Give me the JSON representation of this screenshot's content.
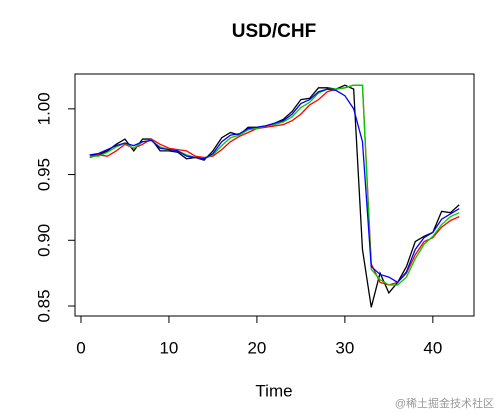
{
  "chart_data": {
    "type": "line",
    "title": "USD/CHF",
    "x_label": "Time",
    "x": [
      1,
      2,
      3,
      4,
      5,
      6,
      7,
      8,
      9,
      10,
      11,
      12,
      13,
      14,
      15,
      16,
      17,
      18,
      19,
      20,
      21,
      22,
      23,
      24,
      25,
      26,
      27,
      28,
      29,
      30,
      31,
      32,
      33,
      34,
      35,
      36,
      37,
      38,
      39,
      40,
      41,
      42,
      43
    ],
    "series": [
      {
        "color": "#000000",
        "values": [
          0.965,
          0.965,
          0.968,
          0.973,
          0.977,
          0.968,
          0.977,
          0.977,
          0.968,
          0.968,
          0.967,
          0.962,
          0.963,
          0.961,
          0.968,
          0.978,
          0.982,
          0.98,
          0.986,
          0.986,
          0.987,
          0.989,
          0.992,
          0.998,
          1.007,
          1.008,
          1.016,
          1.016,
          1.015,
          1.018,
          1.015,
          0.893,
          0.849,
          0.875,
          0.86,
          0.868,
          0.88,
          0.899,
          0.903,
          0.906,
          0.922,
          0.921,
          0.927
        ]
      },
      {
        "color": "#ff0000",
        "values": [
          0.963,
          0.965,
          0.964,
          0.968,
          0.973,
          0.97,
          0.973,
          0.977,
          0.973,
          0.97,
          0.969,
          0.968,
          0.964,
          0.963,
          0.964,
          0.969,
          0.975,
          0.979,
          0.982,
          0.985,
          0.986,
          0.987,
          0.988,
          0.991,
          0.996,
          1.003,
          1.007,
          1.013,
          1.015,
          1.016,
          1.018,
          1.018,
          0.882,
          0.868,
          0.866,
          0.868,
          0.875,
          0.889,
          0.899,
          0.902,
          0.91,
          0.915,
          0.918
        ]
      },
      {
        "color": "#00cd00",
        "values": [
          0.964,
          0.964,
          0.967,
          0.971,
          0.974,
          0.97,
          0.975,
          0.976,
          0.971,
          0.969,
          0.968,
          0.965,
          0.963,
          0.962,
          0.965,
          0.972,
          0.978,
          0.98,
          0.984,
          0.985,
          0.987,
          0.988,
          0.99,
          0.994,
          1.001,
          1.005,
          1.012,
          1.015,
          1.015,
          1.016,
          1.018,
          1.018,
          0.878,
          0.87,
          0.866,
          0.866,
          0.872,
          0.886,
          0.897,
          0.903,
          0.912,
          0.918,
          0.921
        ]
      },
      {
        "color": "#0000ff",
        "values": [
          0.965,
          0.966,
          0.969,
          0.972,
          0.974,
          0.972,
          0.975,
          0.976,
          0.97,
          0.969,
          0.968,
          0.964,
          0.963,
          0.962,
          0.966,
          0.975,
          0.98,
          0.981,
          0.985,
          0.986,
          0.987,
          0.989,
          0.991,
          0.996,
          1.004,
          1.007,
          1.013,
          1.015,
          1.014,
          1.01,
          1.0,
          0.975,
          0.88,
          0.874,
          0.872,
          0.868,
          0.876,
          0.893,
          0.902,
          0.906,
          0.916,
          0.92,
          0.924
        ]
      }
    ],
    "xlim": [
      -0.68,
      44.68
    ],
    "ylim": [
      0.8424,
      1.0265
    ],
    "xticks": [
      0,
      10,
      20,
      30,
      40
    ],
    "yticks": [
      0.85,
      {
        "value": 0.9,
        "label": "0.90"
      },
      0.95,
      {
        "value": 1,
        "label": "1.00"
      }
    ]
  },
  "watermark": "@稀土掘金技术社区"
}
